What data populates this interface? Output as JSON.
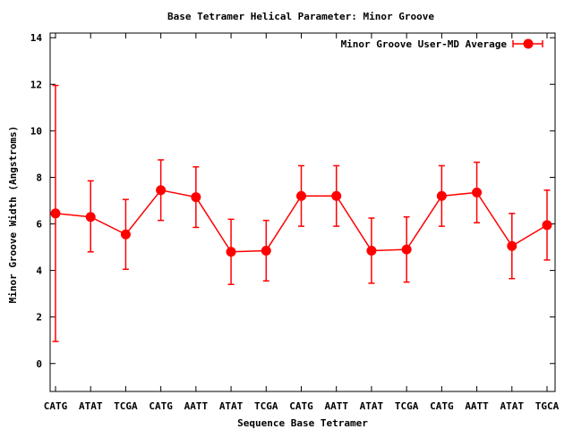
{
  "chart_data": {
    "type": "line",
    "title": "Base Tetramer Helical Parameter: Minor Groove",
    "xlabel": "Sequence Base Tetramer",
    "ylabel": "Minor Groove Width (Angstroms)",
    "ylim": [
      -1.2,
      14.2
    ],
    "yticks": [
      0,
      2,
      4,
      6,
      8,
      10,
      12,
      14
    ],
    "categories": [
      "CATG",
      "ATAT",
      "TCGA",
      "CATG",
      "AATT",
      "ATAT",
      "TCGA",
      "CATG",
      "AATT",
      "ATAT",
      "TCGA",
      "CATG",
      "AATT",
      "ATAT",
      "TGCA"
    ],
    "series": [
      {
        "name": "Minor Groove User-MD Average",
        "color": "#ff0000",
        "values": [
          6.45,
          6.3,
          5.55,
          7.45,
          7.15,
          4.8,
          4.85,
          7.2,
          7.2,
          4.85,
          4.9,
          7.2,
          7.35,
          5.05,
          5.95
        ],
        "err_low": [
          0.95,
          4.8,
          4.05,
          6.15,
          5.85,
          3.4,
          3.55,
          5.9,
          5.9,
          3.45,
          3.5,
          5.9,
          6.05,
          3.65,
          4.45
        ],
        "err_high": [
          11.95,
          7.85,
          7.05,
          8.75,
          8.45,
          6.2,
          6.15,
          8.5,
          8.5,
          6.25,
          6.3,
          8.5,
          8.65,
          6.45,
          7.45
        ]
      }
    ],
    "grid": false,
    "legend": "top-right"
  }
}
